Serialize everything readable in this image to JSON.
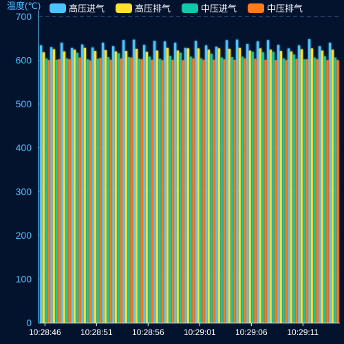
{
  "chart_data": {
    "type": "bar",
    "ylabel": "温度(℃)",
    "ylim": [
      0,
      700
    ],
    "yticks": [
      0,
      100,
      200,
      300,
      400,
      500,
      600,
      700
    ],
    "ytick_labels": [
      "0",
      "100",
      "200",
      "300",
      "400",
      "500",
      "600",
      "700"
    ],
    "xtick_labels": [
      "10:28:46",
      "10:28:51",
      "10:28:56",
      "10:29:01",
      "10:29:06",
      "10:29:11"
    ],
    "legend_position": "top",
    "categories": [
      "10:28:46",
      "10:28:47",
      "10:28:48",
      "10:28:49",
      "10:28:50",
      "10:28:51",
      "10:28:52",
      "10:28:53",
      "10:28:54",
      "10:28:55",
      "10:28:56",
      "10:28:57",
      "10:28:58",
      "10:28:59",
      "10:29:00",
      "10:29:01",
      "10:29:02",
      "10:29:03",
      "10:29:04",
      "10:29:05",
      "10:29:06",
      "10:29:07",
      "10:29:08",
      "10:29:09",
      "10:29:10",
      "10:29:11",
      "10:29:12",
      "10:29:13",
      "10:29:14"
    ],
    "series": [
      {
        "name": "高压进气",
        "color": "#4cc3ff",
        "values": [
          634,
          630,
          640,
          628,
          636,
          629,
          640,
          632,
          646,
          647,
          635,
          644,
          643,
          640,
          628,
          644,
          634,
          631,
          646,
          647,
          637,
          643,
          646,
          635,
          627,
          634,
          648,
          632,
          640
        ]
      },
      {
        "name": "高压排气",
        "color": "#ffe033",
        "values": [
          618,
          625,
          620,
          624,
          628,
          621,
          623,
          620,
          621,
          626,
          619,
          622,
          628,
          622,
          627,
          627,
          624,
          627,
          626,
          628,
          622,
          627,
          624,
          621,
          620,
          625,
          627,
          622,
          624
        ]
      },
      {
        "name": "中压进气",
        "color": "#12c8a8",
        "values": [
          604,
          601,
          604,
          617,
          602,
          603,
          607,
          616,
          607,
          603,
          608,
          603,
          610,
          617,
          608,
          604,
          615,
          606,
          607,
          608,
          619,
          618,
          619,
          604,
          613,
          602,
          606,
          609,
          606
        ]
      },
      {
        "name": "中压排气",
        "color": "#ff7a1a",
        "values": [
          600,
          602,
          602,
          606,
          599,
          605,
          601,
          604,
          606,
          602,
          601,
          600,
          601,
          600,
          604,
          601,
          601,
          602,
          601,
          604,
          603,
          601,
          600,
          600,
          603,
          602,
          602,
          600,
          600
        ]
      }
    ]
  }
}
